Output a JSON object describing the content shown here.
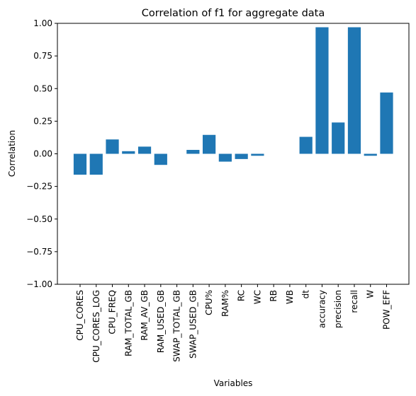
{
  "chart_data": {
    "type": "bar",
    "title": "Correlation of f1 for aggregate data",
    "xlabel": "Variables",
    "ylabel": "Correlation",
    "ylim": [
      -1.0,
      1.0
    ],
    "yticks": [
      "−1.00",
      "−0.75",
      "−0.50",
      "−0.25",
      "0.00",
      "0.25",
      "0.50",
      "0.75",
      "1.00"
    ],
    "ytick_values": [
      -1.0,
      -0.75,
      -0.5,
      -0.25,
      0.0,
      0.25,
      0.5,
      0.75,
      1.0
    ],
    "categories": [
      "CPU_CORES",
      "CPU_CORES_LOG",
      "CPU_FREQ",
      "RAM_TOTAL_GB",
      "RAM_AV_GB",
      "RAM_USED_GB",
      "SWAP_TOTAL_GB",
      "SWAP_USED_GB",
      "CPU%",
      "RAM%",
      "RC",
      "WC",
      "RB",
      "WB",
      "dt",
      "accuracy",
      "precision",
      "recall",
      "W",
      "POW_EFF"
    ],
    "values": [
      -0.16,
      -0.16,
      0.11,
      0.02,
      0.055,
      -0.085,
      0.0,
      0.03,
      0.145,
      -0.06,
      -0.04,
      -0.015,
      0.0,
      0.0,
      0.13,
      0.97,
      0.24,
      0.97,
      -0.015,
      0.47
    ],
    "bar_color": "#1f77b4",
    "grid": false,
    "legend": "none"
  }
}
